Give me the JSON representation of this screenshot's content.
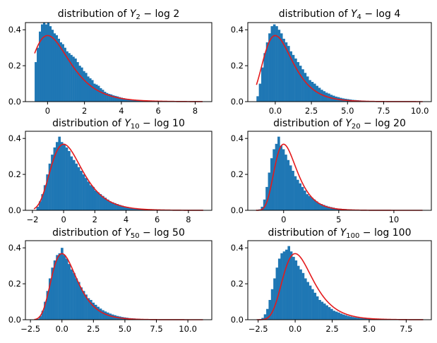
{
  "figure": {
    "background": "#ffffff"
  },
  "colors": {
    "histogram": "#1f77b4",
    "density": "#e41a1c"
  },
  "chart_data": [
    {
      "type": "histogram",
      "title": "distribution of Y_2 − log 2",
      "title_parts": {
        "prefix": "distribution of ",
        "var": "Y",
        "sub": "2",
        "suffix": " − log 2"
      },
      "xlim": [
        -1.2,
        8.9
      ],
      "ylim": [
        0,
        0.44
      ],
      "xticks": [
        0,
        2,
        4,
        6,
        8
      ],
      "xtick_labels": [
        "0",
        "2",
        "4",
        "6",
        "8"
      ],
      "yticks": [
        0.0,
        0.2,
        0.4
      ],
      "ytick_labels": [
        "0.0",
        "0.2",
        "0.4"
      ],
      "hist_range": [
        -0.7,
        8.4
      ],
      "series": [
        {
          "kind": "histogram",
          "bin_counts": [
            0.22,
            0.3,
            0.39,
            0.43,
            0.44,
            0.43,
            0.44,
            0.42,
            0.4,
            0.38,
            0.37,
            0.35,
            0.33,
            0.32,
            0.3,
            0.28,
            0.27,
            0.26,
            0.25,
            0.24,
            0.22,
            0.2,
            0.19,
            0.17,
            0.16,
            0.14,
            0.13,
            0.12,
            0.1,
            0.095,
            0.088,
            0.075,
            0.066,
            0.055,
            0.048,
            0.043,
            0.04,
            0.035,
            0.032,
            0.029,
            0.025,
            0.022,
            0.019,
            0.016,
            0.015,
            0.013,
            0.011,
            0.01,
            0.009,
            0.008,
            0.007,
            0.006,
            0.005,
            0.005,
            0.004,
            0.004,
            0.003,
            0.003,
            0.002,
            0.002,
            0.002,
            0.002,
            0.001,
            0.001,
            0.001,
            0.001,
            0.001,
            0.001,
            0.0,
            0.001,
            0.0,
            0.0,
            0.001,
            0.0,
            0.0,
            0.0,
            0.0,
            0.0,
            0.0,
            0.001
          ]
        },
        {
          "kind": "gumbel-density",
          "x_range": [
            -0.7,
            8.4
          ]
        }
      ]
    },
    {
      "type": "histogram",
      "title": "distribution of Y_4 − log 4",
      "title_parts": {
        "prefix": "distribution of ",
        "var": "Y",
        "sub": "4",
        "suffix": " − log 4"
      },
      "xlim": [
        -1.9,
        10.8
      ],
      "ylim": [
        0,
        0.44
      ],
      "xticks": [
        0,
        2.5,
        5,
        7.5,
        10
      ],
      "xtick_labels": [
        "0.0",
        "2.5",
        "5.0",
        "7.5",
        "10.0"
      ],
      "yticks": [
        0.0,
        0.2,
        0.4
      ],
      "ytick_labels": [
        "0.0",
        "0.2",
        "0.4"
      ],
      "hist_range": [
        -1.3,
        10.2
      ],
      "series": [
        {
          "kind": "histogram",
          "bin_counts": [
            0.03,
            0.1,
            0.19,
            0.27,
            0.33,
            0.38,
            0.42,
            0.43,
            0.42,
            0.4,
            0.38,
            0.35,
            0.33,
            0.31,
            0.28,
            0.26,
            0.24,
            0.22,
            0.2,
            0.18,
            0.16,
            0.14,
            0.12,
            0.11,
            0.1,
            0.088,
            0.077,
            0.066,
            0.058,
            0.05,
            0.045,
            0.038,
            0.033,
            0.028,
            0.025,
            0.021,
            0.018,
            0.016,
            0.014,
            0.012,
            0.01,
            0.009,
            0.008,
            0.007,
            0.006,
            0.005,
            0.004,
            0.004,
            0.003,
            0.003,
            0.002,
            0.002,
            0.002,
            0.001,
            0.001,
            0.001,
            0.001,
            0.001,
            0.001,
            0.0,
            0.001,
            0.0,
            0.0,
            0.0,
            0.0,
            0.0,
            0.0,
            0.0,
            0.0,
            0.001
          ]
        },
        {
          "kind": "gumbel-density",
          "x_range": [
            -1.3,
            10.2
          ]
        }
      ]
    },
    {
      "type": "histogram",
      "title": "distribution of Y_10 − log 10",
      "title_parts": {
        "prefix": "distribution of ",
        "var": "Y",
        "sub": "10",
        "suffix": " − log 10"
      },
      "xlim": [
        -2.45,
        9.5
      ],
      "ylim": [
        0,
        0.44
      ],
      "xticks": [
        -2,
        0,
        2,
        4,
        6,
        8
      ],
      "xtick_labels": [
        "−2",
        "0",
        "2",
        "4",
        "6",
        "8"
      ],
      "yticks": [
        0.0,
        0.2,
        0.4
      ],
      "ytick_labels": [
        "0.0",
        "0.2",
        "0.4"
      ],
      "hist_range": [
        -1.9,
        8.95
      ],
      "series": [
        {
          "kind": "histogram",
          "bin_counts": [
            0.0,
            0.02,
            0.05,
            0.09,
            0.14,
            0.2,
            0.26,
            0.31,
            0.35,
            0.38,
            0.41,
            0.38,
            0.37,
            0.35,
            0.33,
            0.3,
            0.28,
            0.26,
            0.24,
            0.22,
            0.2,
            0.18,
            0.16,
            0.14,
            0.13,
            0.11,
            0.1,
            0.09,
            0.08,
            0.07,
            0.06,
            0.05,
            0.045,
            0.04,
            0.035,
            0.03,
            0.026,
            0.022,
            0.019,
            0.016,
            0.014,
            0.012,
            0.01,
            0.009,
            0.008,
            0.007,
            0.006,
            0.005,
            0.004,
            0.004,
            0.003,
            0.003,
            0.002,
            0.002,
            0.002,
            0.001,
            0.001,
            0.001,
            0.001,
            0.001,
            0.0,
            0.001,
            0.0,
            0.0,
            0.0,
            0.0,
            0.0,
            0.0,
            0.0,
            0.001
          ]
        },
        {
          "kind": "gumbel-density",
          "x_range": [
            -1.9,
            8.95
          ]
        }
      ]
    },
    {
      "type": "histogram",
      "title": "distribution of Y_20 − log 20",
      "title_parts": {
        "prefix": "distribution of ",
        "var": "Y",
        "sub": "20",
        "suffix": " − log 20"
      },
      "xlim": [
        -3.25,
        13.4
      ],
      "ylim": [
        0,
        0.44
      ],
      "xticks": [
        0,
        5,
        10
      ],
      "xtick_labels": [
        "0",
        "5",
        "10"
      ],
      "yticks": [
        0.0,
        0.2,
        0.4
      ],
      "ytick_labels": [
        "0.0",
        "0.2",
        "0.4"
      ],
      "hist_range": [
        -2.5,
        12.6
      ],
      "series": [
        {
          "kind": "histogram",
          "bin_counts": [
            0.0,
            0.005,
            0.02,
            0.06,
            0.13,
            0.21,
            0.29,
            0.34,
            0.37,
            0.41,
            0.36,
            0.34,
            0.31,
            0.28,
            0.25,
            0.22,
            0.19,
            0.17,
            0.15,
            0.13,
            0.11,
            0.09,
            0.08,
            0.07,
            0.06,
            0.05,
            0.04,
            0.035,
            0.03,
            0.025,
            0.021,
            0.018,
            0.015,
            0.012,
            0.01,
            0.009,
            0.008,
            0.007,
            0.006,
            0.005,
            0.004,
            0.003,
            0.003,
            0.002,
            0.002,
            0.002,
            0.001,
            0.001,
            0.001,
            0.001,
            0.001,
            0.0,
            0.001,
            0.0,
            0.0,
            0.0,
            0.0,
            0.0,
            0.0,
            0.0,
            0.0,
            0.0,
            0.0,
            0.0,
            0.0,
            0.0,
            0.0,
            0.0,
            0.0,
            0.001
          ]
        },
        {
          "kind": "gumbel-density",
          "x_range": [
            -2.5,
            12.6
          ]
        }
      ]
    },
    {
      "type": "histogram",
      "title": "distribution of Y_50 − log 50",
      "title_parts": {
        "prefix": "distribution of ",
        "var": "Y",
        "sub": "50",
        "suffix": " − log 50"
      },
      "xlim": [
        -2.9,
        11.9
      ],
      "ylim": [
        0,
        0.44
      ],
      "xticks": [
        -2.5,
        0,
        2.5,
        5,
        7.5,
        10
      ],
      "xtick_labels": [
        "−2.5",
        "0.0",
        "2.5",
        "5.0",
        "7.5",
        "10.0"
      ],
      "yticks": [
        0.0,
        0.2,
        0.4
      ],
      "ytick_labels": [
        "0.0",
        "0.2",
        "0.4"
      ],
      "hist_range": [
        -2.2,
        11.2
      ],
      "series": [
        {
          "kind": "histogram",
          "bin_counts": [
            0.0,
            0.005,
            0.02,
            0.05,
            0.1,
            0.16,
            0.23,
            0.29,
            0.33,
            0.36,
            0.37,
            0.4,
            0.36,
            0.34,
            0.31,
            0.28,
            0.26,
            0.23,
            0.21,
            0.18,
            0.16,
            0.14,
            0.12,
            0.11,
            0.095,
            0.083,
            0.072,
            0.062,
            0.053,
            0.046,
            0.04,
            0.034,
            0.029,
            0.025,
            0.021,
            0.018,
            0.015,
            0.013,
            0.011,
            0.009,
            0.008,
            0.007,
            0.006,
            0.005,
            0.004,
            0.004,
            0.003,
            0.003,
            0.002,
            0.002,
            0.002,
            0.001,
            0.001,
            0.001,
            0.001,
            0.001,
            0.0,
            0.001,
            0.0,
            0.0,
            0.0,
            0.0,
            0.0,
            0.0,
            0.0,
            0.0,
            0.0,
            0.0,
            0.0,
            0.001
          ]
        },
        {
          "kind": "gumbel-density",
          "x_range": [
            -2.2,
            11.2
          ]
        }
      ]
    },
    {
      "type": "histogram",
      "title": "distribution of Y_100 − log 100",
      "title_parts": {
        "prefix": "distribution of ",
        "var": "Y",
        "sub": "100",
        "suffix": " − log 100"
      },
      "xlim": [
        -3.2,
        9.2
      ],
      "ylim": [
        0,
        0.44
      ],
      "xticks": [
        -2.5,
        0,
        2.5,
        5,
        7.5
      ],
      "xtick_labels": [
        "−2.5",
        "0.0",
        "2.5",
        "5.0",
        "7.5"
      ],
      "yticks": [
        0.0,
        0.2,
        0.4
      ],
      "ytick_labels": [
        "0.0",
        "0.2",
        "0.4"
      ],
      "hist_range": [
        -2.6,
        8.65
      ],
      "series": [
        {
          "kind": "histogram",
          "bin_counts": [
            0.0,
            0.003,
            0.01,
            0.03,
            0.06,
            0.11,
            0.17,
            0.23,
            0.29,
            0.34,
            0.37,
            0.38,
            0.39,
            0.41,
            0.38,
            0.35,
            0.33,
            0.3,
            0.28,
            0.26,
            0.23,
            0.21,
            0.19,
            0.17,
            0.15,
            0.13,
            0.11,
            0.1,
            0.09,
            0.08,
            0.07,
            0.06,
            0.05,
            0.045,
            0.04,
            0.034,
            0.029,
            0.025,
            0.021,
            0.018,
            0.015,
            0.013,
            0.011,
            0.009,
            0.008,
            0.007,
            0.006,
            0.005,
            0.004,
            0.003,
            0.003,
            0.002,
            0.002,
            0.002,
            0.001,
            0.001,
            0.001,
            0.001,
            0.001,
            0.0,
            0.001,
            0.0,
            0.0,
            0.0,
            0.0,
            0.0,
            0.0,
            0.0,
            0.0,
            0.001
          ]
        },
        {
          "kind": "gumbel-density",
          "x_range": [
            -2.6,
            8.65
          ]
        }
      ]
    }
  ]
}
